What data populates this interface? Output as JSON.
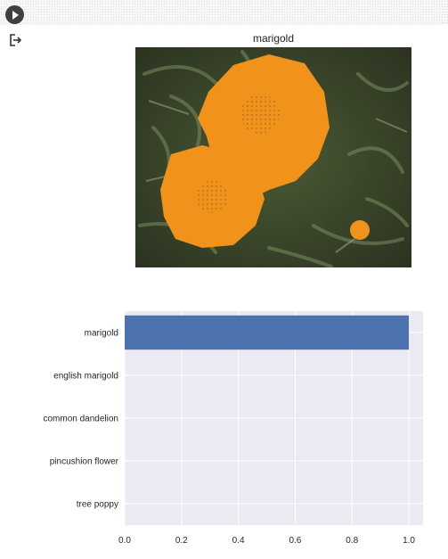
{
  "toolbar": {
    "run_icon": "play-icon"
  },
  "output": {
    "icon": "output-arrow-icon"
  },
  "image_panel": {
    "title": "marigold",
    "colors": {
      "flower": "#f1931a",
      "foliage": "#3c4a2a"
    }
  },
  "chart_data": {
    "type": "bar",
    "orientation": "horizontal",
    "categories": [
      "marigold",
      "english marigold",
      "common dandelion",
      "pincushion flower",
      "tree poppy"
    ],
    "values": [
      1.0,
      0.0,
      0.0,
      0.0,
      0.0
    ],
    "xlim": [
      0,
      1.05
    ],
    "xticks": [
      0.0,
      0.2,
      0.4,
      0.6,
      0.8,
      1.0
    ],
    "xtick_labels": [
      "0.0",
      "0.2",
      "0.4",
      "0.6",
      "0.8",
      "1.0"
    ],
    "grid": true,
    "colors": {
      "bar": "#4c72b0",
      "background": "#eaeaf2",
      "grid": "#ffffff"
    }
  }
}
